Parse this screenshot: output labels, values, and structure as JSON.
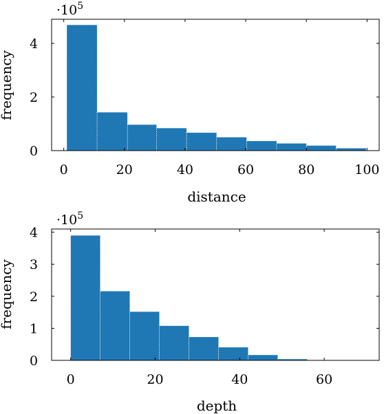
{
  "chart_data": [
    {
      "type": "bar",
      "subtype": "histogram",
      "xlabel": "distance",
      "ylabel": "frequency",
      "scale_multiplier": {
        "base": "·10",
        "exponent": "5"
      },
      "xlim": [
        -4,
        104
      ],
      "ylim": [
        0,
        4.9
      ],
      "xticks": [
        0,
        20,
        40,
        60,
        80,
        100
      ],
      "yticks": [
        0,
        2,
        4
      ],
      "bar_color": "#1f77b4",
      "grid": false,
      "bins": [
        {
          "x0": 1,
          "x1": 11,
          "value": 4.69
        },
        {
          "x0": 11,
          "x1": 21,
          "value": 1.43
        },
        {
          "x0": 21,
          "x1": 30.6,
          "value": 0.97
        },
        {
          "x0": 30.6,
          "x1": 40.5,
          "value": 0.84
        },
        {
          "x0": 40.5,
          "x1": 50.4,
          "value": 0.67
        },
        {
          "x0": 50.4,
          "x1": 60.3,
          "value": 0.5
        },
        {
          "x0": 60.3,
          "x1": 70.2,
          "value": 0.36
        },
        {
          "x0": 70.2,
          "x1": 80,
          "value": 0.27
        },
        {
          "x0": 80,
          "x1": 89.8,
          "value": 0.19
        },
        {
          "x0": 89.8,
          "x1": 99.7,
          "value": 0.09
        }
      ]
    },
    {
      "type": "bar",
      "subtype": "histogram",
      "xlabel": "depth",
      "ylabel": "frequency",
      "scale_multiplier": {
        "base": "·10",
        "exponent": "5"
      },
      "xlim": [
        -4.5,
        73
      ],
      "ylim": [
        0,
        4.1
      ],
      "xticks": [
        0,
        20,
        40,
        60
      ],
      "yticks": [
        0,
        1,
        2,
        3,
        4
      ],
      "bar_color": "#1f77b4",
      "grid": false,
      "bins": [
        {
          "x0": 0,
          "x1": 7,
          "value": 3.9
        },
        {
          "x0": 7,
          "x1": 14,
          "value": 2.16
        },
        {
          "x0": 14,
          "x1": 21,
          "value": 1.52
        },
        {
          "x0": 21,
          "x1": 28,
          "value": 1.08
        },
        {
          "x0": 28,
          "x1": 35,
          "value": 0.73
        },
        {
          "x0": 35,
          "x1": 42,
          "value": 0.41
        },
        {
          "x0": 42,
          "x1": 49,
          "value": 0.17
        },
        {
          "x0": 49,
          "x1": 56,
          "value": 0.04
        },
        {
          "x0": 56,
          "x1": 63,
          "value": 0.01
        },
        {
          "x0": 63,
          "x1": 70,
          "value": 0.005
        }
      ]
    }
  ]
}
